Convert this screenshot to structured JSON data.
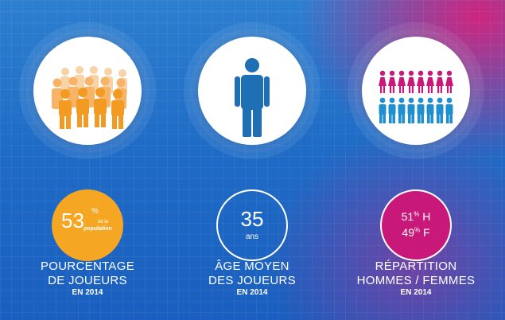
{
  "stats": [
    {
      "icon": "crowd-icon",
      "value": "53",
      "value_suffix": "%",
      "value_small_1": "de la",
      "value_small_2": "population",
      "label_1": "POURCENTAGE",
      "label_2": "DE JOUEURS",
      "year": "EN 2014",
      "badge_color": "#f5a623",
      "icon_color": "#f5a623"
    },
    {
      "icon": "person-icon",
      "value": "35",
      "unit": "ans",
      "label_1": "ÂGE MOYEN",
      "label_2": "DES JOUEURS",
      "year": "EN 2014",
      "icon_color": "#1f6fb5"
    },
    {
      "icon": "men-women-icon",
      "line_1_value": "51",
      "line_1_suffix": "%",
      "line_1_letter": "H",
      "line_2_value": "49",
      "line_2_suffix": "%",
      "line_2_letter": "F",
      "label_1": "RÉPARTITION",
      "label_2": "HOMMES / FEMMES",
      "year": "EN 2014",
      "badge_color": "#c8197a",
      "women_color": "#c8197a",
      "men_color": "#1f8fd0"
    }
  ]
}
